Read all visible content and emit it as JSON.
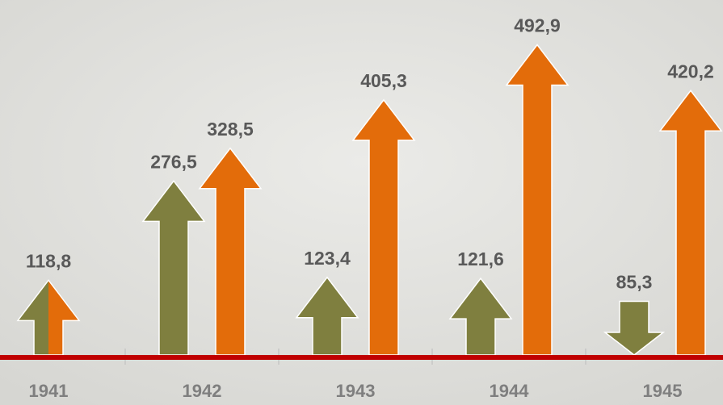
{
  "chart_data": {
    "type": "arrow-bar",
    "categories": [
      "1941",
      "1942",
      "1943",
      "1944",
      "1945"
    ],
    "series": [
      {
        "color": "#7f7f3f",
        "values": [
          118.8,
          276.5,
          123.4,
          121.6,
          85.3
        ],
        "value_labels": [
          "118,8",
          "276,5",
          "123,4",
          "121,6",
          "85,3"
        ],
        "directions": [
          "up",
          "up",
          "up",
          "up",
          "down"
        ]
      },
      {
        "color": "#e36c0a",
        "values": [
          null,
          328.5,
          405.3,
          492.9,
          420.2
        ],
        "value_labels": [
          null,
          "328,5",
          "405,3",
          "492,9",
          "420,2"
        ],
        "directions": [
          "up",
          "up",
          "up",
          "up",
          "up"
        ]
      }
    ],
    "ylim": [
      0,
      500
    ],
    "baseline_color": "#c00000"
  }
}
